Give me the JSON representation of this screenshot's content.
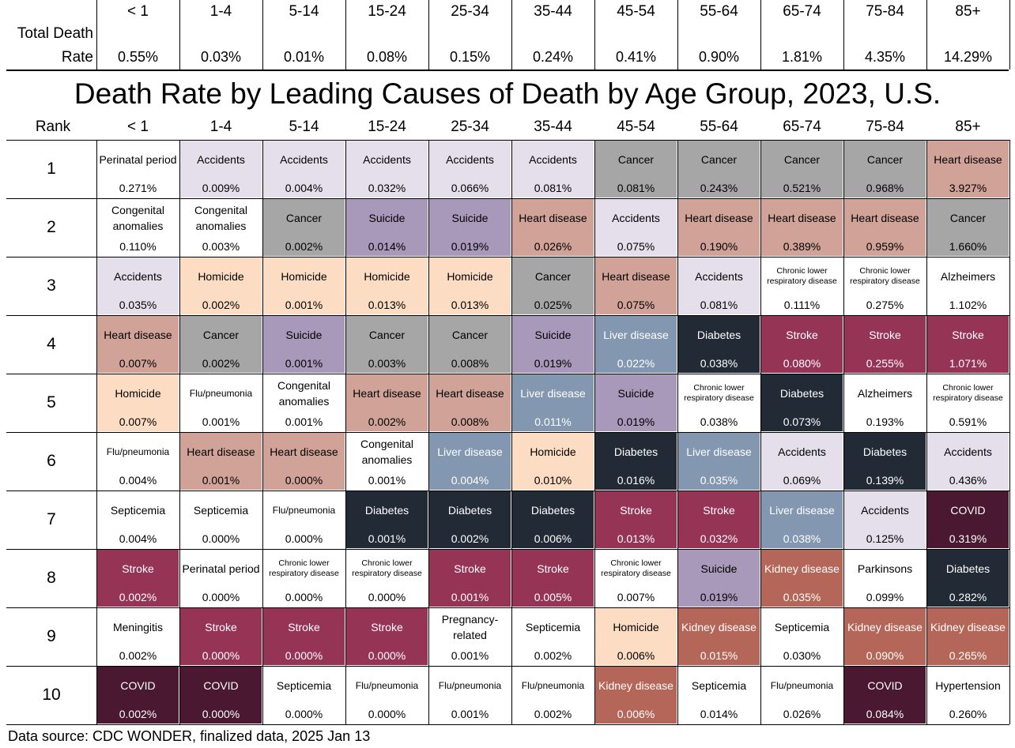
{
  "age_groups": [
    "< 1",
    "1-4",
    "5-14",
    "15-24",
    "25-34",
    "35-44",
    "45-54",
    "55-64",
    "65-74",
    "75-84",
    "85+"
  ],
  "total_death_rate": {
    "label_line1": "Total Death",
    "label_line2": "Rate",
    "values": [
      "0.55%",
      "0.03%",
      "0.01%",
      "0.08%",
      "0.15%",
      "0.24%",
      "0.41%",
      "0.90%",
      "1.81%",
      "4.35%",
      "14.29%"
    ]
  },
  "chart_data": {
    "type": "table",
    "title": "Death Rate by Leading Causes of Death by Age Group, 2023, U.S.",
    "rank_header": "Rank",
    "columns": [
      "< 1",
      "1-4",
      "5-14",
      "15-24",
      "25-34",
      "35-44",
      "45-54",
      "55-64",
      "65-74",
      "75-84",
      "85+"
    ],
    "ranks": [
      "1",
      "2",
      "3",
      "4",
      "5",
      "6",
      "7",
      "8",
      "9",
      "10"
    ],
    "rows": [
      [
        [
          "Perinatal period",
          "0.271%"
        ],
        [
          "Accidents",
          "0.009%"
        ],
        [
          "Accidents",
          "0.004%"
        ],
        [
          "Accidents",
          "0.032%"
        ],
        [
          "Accidents",
          "0.066%"
        ],
        [
          "Accidents",
          "0.081%"
        ],
        [
          "Cancer",
          "0.081%"
        ],
        [
          "Cancer",
          "0.243%"
        ],
        [
          "Cancer",
          "0.521%"
        ],
        [
          "Cancer",
          "0.968%"
        ],
        [
          "Heart disease",
          "3.927%"
        ]
      ],
      [
        [
          "Congenital anomalies",
          "0.110%"
        ],
        [
          "Congenital anomalies",
          "0.003%"
        ],
        [
          "Cancer",
          "0.002%"
        ],
        [
          "Suicide",
          "0.014%"
        ],
        [
          "Suicide",
          "0.019%"
        ],
        [
          "Heart disease",
          "0.026%"
        ],
        [
          "Accidents",
          "0.075%"
        ],
        [
          "Heart disease",
          "0.190%"
        ],
        [
          "Heart disease",
          "0.389%"
        ],
        [
          "Heart disease",
          "0.959%"
        ],
        [
          "Cancer",
          "1.660%"
        ]
      ],
      [
        [
          "Accidents",
          "0.035%"
        ],
        [
          "Homicide",
          "0.002%"
        ],
        [
          "Homicide",
          "0.001%"
        ],
        [
          "Homicide",
          "0.013%"
        ],
        [
          "Homicide",
          "0.013%"
        ],
        [
          "Cancer",
          "0.025%"
        ],
        [
          "Heart disease",
          "0.075%"
        ],
        [
          "Accidents",
          "0.081%"
        ],
        [
          "Chronic lower respiratory disease",
          "0.111%"
        ],
        [
          "Chronic lower respiratory disease",
          "0.275%"
        ],
        [
          "Alzheimers",
          "1.102%"
        ]
      ],
      [
        [
          "Heart disease",
          "0.007%"
        ],
        [
          "Cancer",
          "0.002%"
        ],
        [
          "Suicide",
          "0.001%"
        ],
        [
          "Cancer",
          "0.003%"
        ],
        [
          "Cancer",
          "0.008%"
        ],
        [
          "Suicide",
          "0.019%"
        ],
        [
          "Liver disease",
          "0.022%"
        ],
        [
          "Diabetes",
          "0.038%"
        ],
        [
          "Stroke",
          "0.080%"
        ],
        [
          "Stroke",
          "0.255%"
        ],
        [
          "Stroke",
          "1.071%"
        ]
      ],
      [
        [
          "Homicide",
          "0.007%"
        ],
        [
          "Flu/pneumonia",
          "0.001%"
        ],
        [
          "Congenital anomalies",
          "0.001%"
        ],
        [
          "Heart disease",
          "0.002%"
        ],
        [
          "Heart disease",
          "0.008%"
        ],
        [
          "Liver disease",
          "0.011%"
        ],
        [
          "Suicide",
          "0.019%"
        ],
        [
          "Chronic lower respiratory disease",
          "0.038%"
        ],
        [
          "Diabetes",
          "0.073%"
        ],
        [
          "Alzheimers",
          "0.193%"
        ],
        [
          "Chronic lower respiratory disease",
          "0.591%"
        ]
      ],
      [
        [
          "Flu/pneumonia",
          "0.004%"
        ],
        [
          "Heart disease",
          "0.001%"
        ],
        [
          "Heart disease",
          "0.000%"
        ],
        [
          "Congenital anomalies",
          "0.001%"
        ],
        [
          "Liver disease",
          "0.004%"
        ],
        [
          "Homicide",
          "0.010%"
        ],
        [
          "Diabetes",
          "0.016%"
        ],
        [
          "Liver disease",
          "0.035%"
        ],
        [
          "Accidents",
          "0.069%"
        ],
        [
          "Diabetes",
          "0.139%"
        ],
        [
          "Accidents",
          "0.436%"
        ]
      ],
      [
        [
          "Septicemia",
          "0.004%"
        ],
        [
          "Septicemia",
          "0.000%"
        ],
        [
          "Flu/pneumonia",
          "0.000%"
        ],
        [
          "Diabetes",
          "0.001%"
        ],
        [
          "Diabetes",
          "0.002%"
        ],
        [
          "Diabetes",
          "0.006%"
        ],
        [
          "Stroke",
          "0.013%"
        ],
        [
          "Stroke",
          "0.032%"
        ],
        [
          "Liver disease",
          "0.038%"
        ],
        [
          "Accidents",
          "0.125%"
        ],
        [
          "COVID",
          "0.319%"
        ]
      ],
      [
        [
          "Stroke",
          "0.002%"
        ],
        [
          "Perinatal period",
          "0.000%"
        ],
        [
          "Chronic lower respiratory disease",
          "0.000%"
        ],
        [
          "Chronic lower respiratory disease",
          "0.000%"
        ],
        [
          "Stroke",
          "0.001%"
        ],
        [
          "Stroke",
          "0.005%"
        ],
        [
          "Chronic lower respiratory disease",
          "0.007%"
        ],
        [
          "Suicide",
          "0.019%"
        ],
        [
          "Kidney disease",
          "0.035%"
        ],
        [
          "Parkinsons",
          "0.099%"
        ],
        [
          "Diabetes",
          "0.282%"
        ]
      ],
      [
        [
          "Meningitis",
          "0.002%"
        ],
        [
          "Stroke",
          "0.000%"
        ],
        [
          "Stroke",
          "0.000%"
        ],
        [
          "Stroke",
          "0.000%"
        ],
        [
          "Pregnancy-related",
          "0.001%"
        ],
        [
          "Septicemia",
          "0.002%"
        ],
        [
          "Homicide",
          "0.006%"
        ],
        [
          "Kidney disease",
          "0.015%"
        ],
        [
          "Septicemia",
          "0.030%"
        ],
        [
          "Kidney disease",
          "0.090%"
        ],
        [
          "Kidney disease",
          "0.265%"
        ]
      ],
      [
        [
          "COVID",
          "0.002%"
        ],
        [
          "COVID",
          "0.000%"
        ],
        [
          "Septicemia",
          "0.000%"
        ],
        [
          "Flu/pneumonia",
          "0.000%"
        ],
        [
          "Flu/pneumonia",
          "0.001%"
        ],
        [
          "Flu/pneumonia",
          "0.002%"
        ],
        [
          "Kidney disease",
          "0.006%"
        ],
        [
          "Septicemia",
          "0.014%"
        ],
        [
          "Flu/pneumonia",
          "0.026%"
        ],
        [
          "COVID",
          "0.084%"
        ],
        [
          "Hypertension",
          "0.260%"
        ]
      ]
    ],
    "cause_colors": {
      "Accidents": "#e4dfeb",
      "Cancer": "#a6a6a6",
      "Heart disease": "#d0a298",
      "Suicide": "#a898b9",
      "Homicide": "#fcdcc2",
      "Liver disease": "#8497b0",
      "Diabetes": "#222a35",
      "Stroke": "#963456",
      "COVID": "#4a1830",
      "Kidney disease": "#b46658"
    }
  },
  "source": "Data source: CDC WONDER, finalized data, 2025 Jan 13"
}
